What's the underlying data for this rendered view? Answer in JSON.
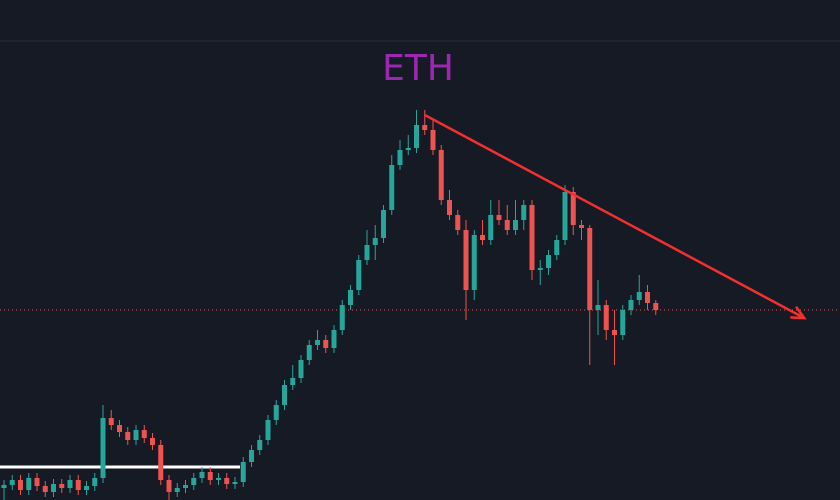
{
  "chart_data": {
    "type": "candlestick",
    "title": "ETH",
    "title_color": "#9c27b0",
    "ylim": [
      0,
      100
    ],
    "up_color": "#26a69a",
    "down_color": "#ef5350",
    "open": [
      2.4,
      3,
      4,
      2,
      4.4,
      2.8,
      1.6,
      3.2,
      2.4,
      4,
      2,
      2.8,
      4.4,
      16.4,
      15,
      13.6,
      12,
      14,
      12.4,
      11,
      4,
      1.6,
      2.4,
      3,
      4.4,
      5.6,
      4,
      4.4,
      3.2,
      3.6,
      7.6,
      10,
      12,
      16,
      19,
      23,
      24.4,
      28,
      31,
      32,
      30.4,
      34,
      39,
      42,
      48,
      51,
      52.4,
      58,
      67,
      70,
      70.4,
      75,
      74,
      70,
      60,
      57,
      54,
      42,
      53,
      52,
      57,
      56,
      54,
      56,
      59,
      46,
      46.4,
      49,
      52,
      61.6,
      55,
      54.4,
      38,
      39,
      34,
      33,
      38,
      40,
      41.6,
      39.4
    ],
    "high": [
      4,
      5,
      5,
      5.4,
      5.4,
      3.8,
      4.2,
      4.2,
      5,
      5,
      3.8,
      5.4,
      19,
      18,
      16,
      14.6,
      15,
      15,
      13.4,
      12,
      5,
      3.4,
      4,
      5.4,
      6.6,
      6.6,
      5.4,
      5.4,
      4.6,
      8.6,
      11,
      13,
      17,
      20,
      24,
      27,
      29,
      32,
      34,
      33,
      35,
      40,
      43,
      49,
      54,
      55,
      59,
      69,
      72,
      73,
      78,
      78,
      76,
      71,
      62,
      58,
      56,
      54,
      56,
      60,
      60,
      59,
      60,
      60,
      60,
      48,
      50,
      53,
      63,
      62.6,
      56,
      55,
      44,
      40,
      38,
      39,
      41,
      45,
      43,
      40
    ],
    "low": [
      0,
      2,
      1,
      1,
      1.8,
      0.6,
      0.6,
      1.4,
      1.4,
      1,
      1,
      1.8,
      3.4,
      14,
      12.6,
      11,
      11,
      11.4,
      10,
      3,
      0,
      0.6,
      1.4,
      2,
      3.4,
      3,
      3,
      2.2,
      2.2,
      2.6,
      6.6,
      9,
      11,
      15,
      18,
      22,
      23.4,
      27,
      30,
      29.4,
      29.4,
      33,
      38,
      41,
      47,
      48,
      51.4,
      57,
      66,
      69,
      69.4,
      73,
      69,
      59,
      56,
      53,
      36,
      40,
      51,
      51,
      55,
      53,
      53,
      54,
      44,
      43,
      45,
      48,
      51,
      53,
      52,
      27,
      33,
      32,
      27,
      32,
      37,
      39,
      38,
      37
    ],
    "close": [
      3,
      4,
      2,
      4.4,
      2.8,
      1.6,
      3.2,
      2.4,
      4,
      2,
      2.8,
      4.4,
      16.4,
      15,
      13.6,
      12,
      14,
      12.4,
      11,
      4,
      1.6,
      2.4,
      3,
      4.4,
      5.6,
      4,
      4.4,
      3.2,
      3.6,
      7.6,
      10,
      12,
      16,
      19,
      23,
      24.4,
      28,
      31,
      32,
      30.4,
      34,
      39,
      42,
      48,
      51,
      52.4,
      58,
      67,
      70,
      70.4,
      75,
      74,
      70,
      60,
      57,
      54,
      42,
      53,
      52,
      57,
      56,
      54,
      56,
      59,
      46,
      46.4,
      49,
      52,
      61.6,
      55,
      54.4,
      38,
      39,
      34,
      33,
      38,
      40,
      41.6,
      39.4,
      38
    ],
    "support_level": 6.6,
    "support_color": "#ffffff",
    "trendline": {
      "from": [
        51,
        77
      ],
      "to": [
        97,
        36.4
      ],
      "color": "#f23030"
    }
  }
}
